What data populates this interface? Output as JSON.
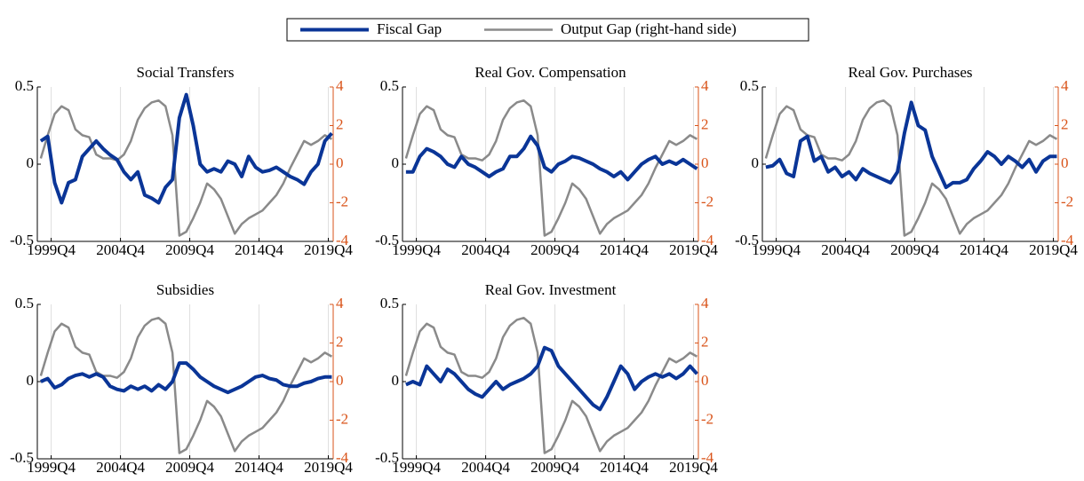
{
  "chart_data": [
    {
      "type": "line",
      "title": "Social Transfers",
      "x": [
        1999,
        1999.5,
        2000,
        2000.5,
        2001,
        2001.5,
        2002,
        2002.5,
        2003,
        2003.5,
        2004,
        2004.5,
        2005,
        2005.5,
        2006,
        2006.5,
        2007,
        2007.5,
        2008,
        2008.5,
        2009,
        2009.5,
        2010,
        2010.5,
        2011,
        2011.5,
        2012,
        2012.5,
        2013,
        2013.5,
        2014,
        2014.5,
        2015,
        2015.5,
        2016,
        2016.5,
        2017,
        2017.5,
        2018,
        2018.5,
        2019,
        2019.5,
        2020
      ],
      "series": [
        {
          "name": "Fiscal Gap",
          "color": "#0a3597",
          "values": [
            0.15,
            0.18,
            -0.12,
            -0.25,
            -0.12,
            -0.1,
            0.05,
            0.1,
            0.15,
            0.1,
            0.06,
            0.03,
            -0.05,
            -0.1,
            -0.05,
            -0.2,
            -0.22,
            -0.25,
            -0.15,
            -0.1,
            0.3,
            0.45,
            0.25,
            0.0,
            -0.05,
            -0.03,
            -0.05,
            0.02,
            0.0,
            -0.08,
            0.05,
            -0.02,
            -0.05,
            -0.04,
            -0.02,
            -0.05,
            -0.08,
            -0.1,
            -0.13,
            -0.05,
            0.0,
            0.15,
            0.2
          ]
        },
        {
          "name": "Output Gap (right-hand side)",
          "color": "#8a8a8a",
          "axis": "y2",
          "values": [
            0.3,
            1.5,
            2.6,
            3.0,
            2.8,
            1.8,
            1.5,
            1.4,
            0.5,
            0.3,
            0.3,
            0.2,
            0.5,
            1.2,
            2.3,
            2.9,
            3.2,
            3.3,
            3.0,
            1.5,
            -3.7,
            -3.5,
            -2.8,
            -2.0,
            -1.0,
            -1.3,
            -1.8,
            -2.7,
            -3.6,
            -3.1,
            -2.8,
            -2.6,
            -2.4,
            -2.0,
            -1.6,
            -1.0,
            -0.2,
            0.5,
            1.2,
            1.0,
            1.2,
            1.5,
            1.3
          ]
        }
      ],
      "xlim": [
        1998.75,
        2020.1
      ],
      "xticks": [
        {
          "value": 1999.75,
          "label": "1999Q4"
        },
        {
          "value": 2004.75,
          "label": "2004Q4"
        },
        {
          "value": 2009.75,
          "label": "2009Q4"
        },
        {
          "value": 2014.75,
          "label": "2014Q4"
        },
        {
          "value": 2019.75,
          "label": "2019Q4"
        }
      ],
      "ylim": [
        -0.5,
        0.5
      ],
      "yticks": [
        -0.5,
        0,
        0.5
      ],
      "y2lim": [
        -4,
        4
      ],
      "y2ticks": [
        -4,
        -2,
        0,
        2,
        4
      ],
      "y2_color": "#d95319",
      "grid": "x"
    },
    {
      "type": "line",
      "title": "Real Gov. Compensation",
      "x": [
        1999,
        1999.5,
        2000,
        2000.5,
        2001,
        2001.5,
        2002,
        2002.5,
        2003,
        2003.5,
        2004,
        2004.5,
        2005,
        2005.5,
        2006,
        2006.5,
        2007,
        2007.5,
        2008,
        2008.5,
        2009,
        2009.5,
        2010,
        2010.5,
        2011,
        2011.5,
        2012,
        2012.5,
        2013,
        2013.5,
        2014,
        2014.5,
        2015,
        2015.5,
        2016,
        2016.5,
        2017,
        2017.5,
        2018,
        2018.5,
        2019,
        2019.5,
        2020
      ],
      "series": [
        {
          "name": "Fiscal Gap",
          "color": "#0a3597",
          "values": [
            -0.05,
            -0.05,
            0.05,
            0.1,
            0.08,
            0.05,
            0.0,
            -0.02,
            0.05,
            0.0,
            -0.02,
            -0.05,
            -0.08,
            -0.05,
            -0.03,
            0.05,
            0.05,
            0.1,
            0.18,
            0.12,
            -0.02,
            -0.05,
            0.0,
            0.02,
            0.05,
            0.04,
            0.02,
            0.0,
            -0.03,
            -0.05,
            -0.08,
            -0.05,
            -0.1,
            -0.05,
            0.0,
            0.03,
            0.05,
            0.0,
            0.02,
            0.0,
            0.03,
            0.0,
            -0.03
          ]
        },
        {
          "name": "Output Gap (right-hand side)",
          "color": "#8a8a8a",
          "axis": "y2",
          "values": [
            0.3,
            1.5,
            2.6,
            3.0,
            2.8,
            1.8,
            1.5,
            1.4,
            0.5,
            0.3,
            0.3,
            0.2,
            0.5,
            1.2,
            2.3,
            2.9,
            3.2,
            3.3,
            3.0,
            1.5,
            -3.7,
            -3.5,
            -2.8,
            -2.0,
            -1.0,
            -1.3,
            -1.8,
            -2.7,
            -3.6,
            -3.1,
            -2.8,
            -2.6,
            -2.4,
            -2.0,
            -1.6,
            -1.0,
            -0.2,
            0.5,
            1.2,
            1.0,
            1.2,
            1.5,
            1.3
          ]
        }
      ],
      "xlim": [
        1998.75,
        2020.1
      ],
      "xticks": [
        {
          "value": 1999.75,
          "label": "1999Q4"
        },
        {
          "value": 2004.75,
          "label": "2004Q4"
        },
        {
          "value": 2009.75,
          "label": "2009Q4"
        },
        {
          "value": 2014.75,
          "label": "2014Q4"
        },
        {
          "value": 2019.75,
          "label": "2019Q4"
        }
      ],
      "ylim": [
        -0.5,
        0.5
      ],
      "yticks": [
        -0.5,
        0,
        0.5
      ],
      "y2lim": [
        -4,
        4
      ],
      "y2ticks": [
        -4,
        -2,
        0,
        2,
        4
      ],
      "y2_color": "#d95319",
      "grid": "x"
    },
    {
      "type": "line",
      "title": "Real Gov. Purchases",
      "x": [
        1999,
        1999.5,
        2000,
        2000.5,
        2001,
        2001.5,
        2002,
        2002.5,
        2003,
        2003.5,
        2004,
        2004.5,
        2005,
        2005.5,
        2006,
        2006.5,
        2007,
        2007.5,
        2008,
        2008.5,
        2009,
        2009.5,
        2010,
        2010.5,
        2011,
        2011.5,
        2012,
        2012.5,
        2013,
        2013.5,
        2014,
        2014.5,
        2015,
        2015.5,
        2016,
        2016.5,
        2017,
        2017.5,
        2018,
        2018.5,
        2019,
        2019.5,
        2020
      ],
      "series": [
        {
          "name": "Fiscal Gap",
          "color": "#0a3597",
          "values": [
            -0.02,
            -0.01,
            0.03,
            -0.06,
            -0.08,
            0.15,
            0.18,
            0.02,
            0.05,
            -0.05,
            -0.02,
            -0.08,
            -0.05,
            -0.1,
            -0.03,
            -0.06,
            -0.08,
            -0.1,
            -0.12,
            -0.05,
            0.2,
            0.4,
            0.25,
            0.22,
            0.05,
            -0.05,
            -0.15,
            -0.12,
            -0.12,
            -0.1,
            -0.03,
            0.02,
            0.08,
            0.05,
            0.0,
            0.05,
            0.02,
            -0.02,
            0.03,
            -0.05,
            0.02,
            0.05,
            0.05
          ]
        },
        {
          "name": "Output Gap (right-hand side)",
          "color": "#8a8a8a",
          "axis": "y2",
          "values": [
            0.3,
            1.5,
            2.6,
            3.0,
            2.8,
            1.8,
            1.5,
            1.4,
            0.5,
            0.3,
            0.3,
            0.2,
            0.5,
            1.2,
            2.3,
            2.9,
            3.2,
            3.3,
            3.0,
            1.5,
            -3.7,
            -3.5,
            -2.8,
            -2.0,
            -1.0,
            -1.3,
            -1.8,
            -2.7,
            -3.6,
            -3.1,
            -2.8,
            -2.6,
            -2.4,
            -2.0,
            -1.6,
            -1.0,
            -0.2,
            0.5,
            1.2,
            1.0,
            1.2,
            1.5,
            1.3
          ]
        }
      ],
      "xlim": [
        1998.75,
        2020.1
      ],
      "xticks": [
        {
          "value": 1999.75,
          "label": "1999Q4"
        },
        {
          "value": 2004.75,
          "label": "2004Q4"
        },
        {
          "value": 2009.75,
          "label": "2009Q4"
        },
        {
          "value": 2014.75,
          "label": "2014Q4"
        },
        {
          "value": 2019.75,
          "label": "2019Q4"
        }
      ],
      "ylim": [
        -0.5,
        0.5
      ],
      "yticks": [
        -0.5,
        0,
        0.5
      ],
      "y2lim": [
        -4,
        4
      ],
      "y2ticks": [
        -4,
        -2,
        0,
        2,
        4
      ],
      "y2_color": "#d95319",
      "grid": "x"
    },
    {
      "type": "line",
      "title": "Subsidies",
      "x": [
        1999,
        1999.5,
        2000,
        2000.5,
        2001,
        2001.5,
        2002,
        2002.5,
        2003,
        2003.5,
        2004,
        2004.5,
        2005,
        2005.5,
        2006,
        2006.5,
        2007,
        2007.5,
        2008,
        2008.5,
        2009,
        2009.5,
        2010,
        2010.5,
        2011,
        2011.5,
        2012,
        2012.5,
        2013,
        2013.5,
        2014,
        2014.5,
        2015,
        2015.5,
        2016,
        2016.5,
        2017,
        2017.5,
        2018,
        2018.5,
        2019,
        2019.5,
        2020
      ],
      "series": [
        {
          "name": "Fiscal Gap",
          "color": "#0a3597",
          "values": [
            0.0,
            0.02,
            -0.04,
            -0.02,
            0.02,
            0.04,
            0.05,
            0.03,
            0.05,
            0.03,
            -0.03,
            -0.05,
            -0.06,
            -0.03,
            -0.05,
            -0.03,
            -0.06,
            -0.02,
            -0.05,
            0.0,
            0.12,
            0.12,
            0.08,
            0.03,
            0.0,
            -0.03,
            -0.05,
            -0.07,
            -0.05,
            -0.03,
            0.0,
            0.03,
            0.04,
            0.02,
            0.01,
            -0.02,
            -0.03,
            -0.03,
            -0.01,
            0.0,
            0.02,
            0.03,
            0.03
          ]
        },
        {
          "name": "Output Gap (right-hand side)",
          "color": "#8a8a8a",
          "axis": "y2",
          "values": [
            0.3,
            1.5,
            2.6,
            3.0,
            2.8,
            1.8,
            1.5,
            1.4,
            0.5,
            0.3,
            0.3,
            0.2,
            0.5,
            1.2,
            2.3,
            2.9,
            3.2,
            3.3,
            3.0,
            1.5,
            -3.7,
            -3.5,
            -2.8,
            -2.0,
            -1.0,
            -1.3,
            -1.8,
            -2.7,
            -3.6,
            -3.1,
            -2.8,
            -2.6,
            -2.4,
            -2.0,
            -1.6,
            -1.0,
            -0.2,
            0.5,
            1.2,
            1.0,
            1.2,
            1.5,
            1.3
          ]
        }
      ],
      "xlim": [
        1998.75,
        2020.1
      ],
      "xticks": [
        {
          "value": 1999.75,
          "label": "1999Q4"
        },
        {
          "value": 2004.75,
          "label": "2004Q4"
        },
        {
          "value": 2009.75,
          "label": "2009Q4"
        },
        {
          "value": 2014.75,
          "label": "2014Q4"
        },
        {
          "value": 2019.75,
          "label": "2019Q4"
        }
      ],
      "ylim": [
        -0.5,
        0.5
      ],
      "yticks": [
        -0.5,
        0,
        0.5
      ],
      "y2lim": [
        -4,
        4
      ],
      "y2ticks": [
        -4,
        -2,
        0,
        2,
        4
      ],
      "y2_color": "#d95319",
      "grid": "x"
    },
    {
      "type": "line",
      "title": "Real Gov. Investment",
      "x": [
        1999,
        1999.5,
        2000,
        2000.5,
        2001,
        2001.5,
        2002,
        2002.5,
        2003,
        2003.5,
        2004,
        2004.5,
        2005,
        2005.5,
        2006,
        2006.5,
        2007,
        2007.5,
        2008,
        2008.5,
        2009,
        2009.5,
        2010,
        2010.5,
        2011,
        2011.5,
        2012,
        2012.5,
        2013,
        2013.5,
        2014,
        2014.5,
        2015,
        2015.5,
        2016,
        2016.5,
        2017,
        2017.5,
        2018,
        2018.5,
        2019,
        2019.5,
        2020
      ],
      "series": [
        {
          "name": "Fiscal Gap",
          "color": "#0a3597",
          "values": [
            -0.02,
            0.0,
            -0.02,
            0.1,
            0.05,
            0.0,
            0.08,
            0.05,
            0.0,
            -0.05,
            -0.08,
            -0.1,
            -0.05,
            0.0,
            -0.05,
            -0.02,
            0.0,
            0.02,
            0.05,
            0.1,
            0.22,
            0.2,
            0.1,
            0.05,
            0.0,
            -0.05,
            -0.1,
            -0.15,
            -0.18,
            -0.1,
            0.0,
            0.1,
            0.05,
            -0.05,
            0.0,
            0.03,
            0.05,
            0.03,
            0.05,
            0.02,
            0.05,
            0.1,
            0.05
          ]
        },
        {
          "name": "Output Gap (right-hand side)",
          "color": "#8a8a8a",
          "axis": "y2",
          "values": [
            0.3,
            1.5,
            2.6,
            3.0,
            2.8,
            1.8,
            1.5,
            1.4,
            0.5,
            0.3,
            0.3,
            0.2,
            0.5,
            1.2,
            2.3,
            2.9,
            3.2,
            3.3,
            3.0,
            1.5,
            -3.7,
            -3.5,
            -2.8,
            -2.0,
            -1.0,
            -1.3,
            -1.8,
            -2.7,
            -3.6,
            -3.1,
            -2.8,
            -2.6,
            -2.4,
            -2.0,
            -1.6,
            -1.0,
            -0.2,
            0.5,
            1.2,
            1.0,
            1.2,
            1.5,
            1.3
          ]
        }
      ],
      "xlim": [
        1998.75,
        2020.1
      ],
      "xticks": [
        {
          "value": 1999.75,
          "label": "1999Q4"
        },
        {
          "value": 2004.75,
          "label": "2004Q4"
        },
        {
          "value": 2009.75,
          "label": "2009Q4"
        },
        {
          "value": 2014.75,
          "label": "2014Q4"
        },
        {
          "value": 2019.75,
          "label": "2019Q4"
        }
      ],
      "ylim": [
        -0.5,
        0.5
      ],
      "yticks": [
        -0.5,
        0,
        0.5
      ],
      "y2lim": [
        -4,
        4
      ],
      "y2ticks": [
        -4,
        -2,
        0,
        2,
        4
      ],
      "y2_color": "#d95319",
      "grid": "x"
    }
  ]
}
